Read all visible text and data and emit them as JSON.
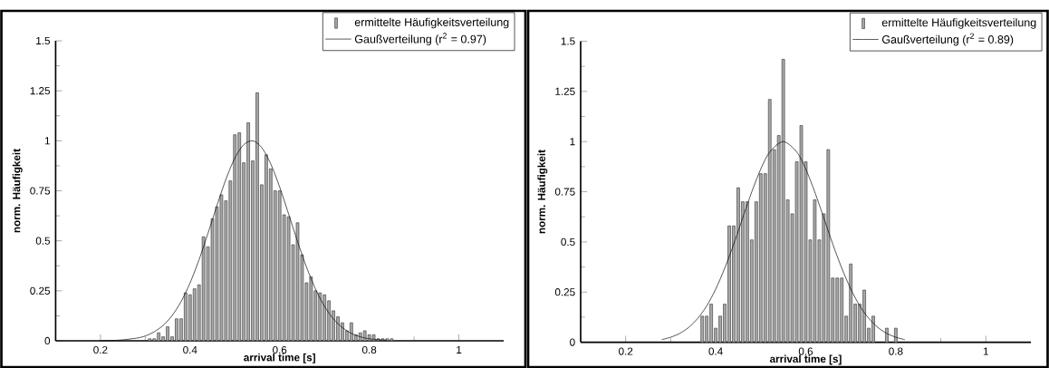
{
  "chart_data": [
    {
      "type": "histogram",
      "xlabel": "arrival time [s]",
      "ylabel": "norm. Häufigkeit",
      "xlim": [
        0.1,
        1.1
      ],
      "ylim": [
        0,
        1.5
      ],
      "xticks": [
        0.2,
        0.4,
        0.6,
        0.8,
        1
      ],
      "yticks": [
        0,
        0.25,
        0.5,
        0.75,
        1,
        1.25,
        1.5
      ],
      "legend": "top right",
      "series": [
        {
          "name": "ermittelte Häufigkeitsverteilung",
          "type": "histogram",
          "color": "#a8a8a8",
          "bins": [
            0.305,
            0.315,
            0.325,
            0.335,
            0.345,
            0.355,
            0.365,
            0.375,
            0.385,
            0.395,
            0.405,
            0.415,
            0.425,
            0.435,
            0.445,
            0.455,
            0.465,
            0.475,
            0.485,
            0.495,
            0.505,
            0.515,
            0.525,
            0.535,
            0.545,
            0.555,
            0.565,
            0.575,
            0.585,
            0.595,
            0.605,
            0.615,
            0.625,
            0.635,
            0.645,
            0.655,
            0.665,
            0.675,
            0.685,
            0.695,
            0.705,
            0.715,
            0.725,
            0.735,
            0.745,
            0.755,
            0.765,
            0.775,
            0.785,
            0.795,
            0.805,
            0.815,
            0.825,
            0.835,
            0.845,
            0.855
          ],
          "values": [
            0.01,
            0.01,
            0.04,
            0.02,
            0.07,
            0.02,
            0.11,
            0.11,
            0.24,
            0.23,
            0.26,
            0.28,
            0.52,
            0.47,
            0.61,
            0.67,
            0.73,
            0.7,
            0.8,
            1.03,
            1.04,
            0.89,
            1.09,
            0.9,
            1.24,
            0.78,
            0.93,
            0.86,
            0.75,
            0.75,
            0.63,
            0.62,
            0.48,
            0.59,
            0.43,
            0.29,
            0.32,
            0.25,
            0.24,
            0.23,
            0.2,
            0.15,
            0.12,
            0.09,
            0.05,
            0.09,
            0.03,
            0.04,
            0.05,
            0.03,
            0.03,
            0.01,
            0.01,
            0.01,
            0.01
          ]
        },
        {
          "name": "Gaußverteilung  (r$^{2}$ = 0.97)",
          "type": "line",
          "color": "#000000",
          "x": [
            0.2,
            0.24,
            0.28,
            0.3,
            0.32,
            0.34,
            0.36,
            0.38,
            0.4,
            0.42,
            0.44,
            0.46,
            0.48,
            0.5,
            0.52,
            0.54,
            0.56,
            0.58,
            0.6,
            0.62,
            0.64,
            0.66,
            0.68,
            0.7,
            0.72,
            0.74,
            0.76,
            0.78,
            0.8,
            0.84
          ],
          "values": [
            0.001,
            0.003,
            0.013,
            0.024,
            0.045,
            0.077,
            0.126,
            0.196,
            0.289,
            0.405,
            0.537,
            0.676,
            0.807,
            0.914,
            0.981,
            1.0,
            0.966,
            0.885,
            0.769,
            0.634,
            0.496,
            0.368,
            0.259,
            0.173,
            0.109,
            0.066,
            0.037,
            0.02,
            0.01,
            0.002
          ]
        }
      ]
    },
    {
      "type": "histogram",
      "xlabel": "arrival time [s]",
      "ylabel": "norm. Häufigkeit",
      "xlim": [
        0.1,
        1.1
      ],
      "ylim": [
        0,
        1.5
      ],
      "xticks": [
        0.2,
        0.4,
        0.6,
        0.8,
        1
      ],
      "yticks": [
        0,
        0.25,
        0.5,
        0.75,
        1,
        1.25,
        1.5
      ],
      "legend": "top right",
      "series": [
        {
          "name": "ermittelte Häufigkeitsverteilung",
          "type": "histogram",
          "color": "#a8a8a8",
          "bins": [
            0.365,
            0.375,
            0.385,
            0.395,
            0.405,
            0.415,
            0.425,
            0.435,
            0.445,
            0.455,
            0.465,
            0.475,
            0.485,
            0.495,
            0.505,
            0.515,
            0.525,
            0.535,
            0.545,
            0.555,
            0.565,
            0.575,
            0.585,
            0.595,
            0.605,
            0.615,
            0.625,
            0.635,
            0.645,
            0.655,
            0.665,
            0.675,
            0.685,
            0.695,
            0.705,
            0.715,
            0.725,
            0.735,
            0.745,
            0.755,
            0.765,
            0.775,
            0.785,
            0.795,
            0.805
          ],
          "values": [
            0.13,
            0.13,
            0.19,
            0.07,
            0.13,
            0.19,
            0.58,
            0.58,
            0.77,
            0.7,
            0.7,
            0.51,
            0.7,
            0.84,
            0.84,
            1.21,
            0.96,
            1.03,
            1.41,
            0.71,
            0.64,
            0.9,
            1.08,
            0.9,
            0.51,
            0.71,
            0.51,
            0.64,
            0.96,
            0.32,
            0.32,
            0.32,
            0.13,
            0.39,
            0.19,
            0.19,
            0.26,
            0.07,
            0.13,
            0,
            0,
            0.07,
            0,
            0.07
          ]
        },
        {
          "name": "Gaußverteilung  (r$^{2}$ = 0.89)",
          "type": "line",
          "color": "#000000",
          "x": [
            0.28,
            0.3,
            0.32,
            0.34,
            0.36,
            0.38,
            0.4,
            0.42,
            0.44,
            0.46,
            0.48,
            0.5,
            0.52,
            0.55,
            0.58,
            0.6,
            0.62,
            0.64,
            0.66,
            0.68,
            0.7,
            0.72,
            0.74,
            0.76,
            0.78,
            0.8,
            0.82
          ],
          "values": [
            0.013,
            0.025,
            0.044,
            0.074,
            0.119,
            0.181,
            0.265,
            0.369,
            0.489,
            0.62,
            0.749,
            0.863,
            0.948,
            1.0,
            0.948,
            0.863,
            0.749,
            0.62,
            0.489,
            0.369,
            0.265,
            0.181,
            0.119,
            0.074,
            0.044,
            0.025,
            0.013
          ]
        }
      ]
    }
  ]
}
